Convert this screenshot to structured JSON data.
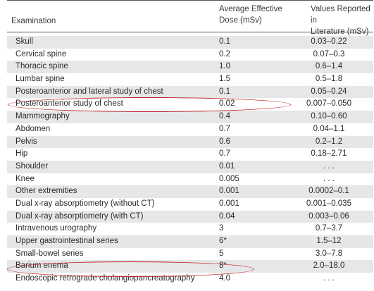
{
  "header": {
    "examination": "Examination",
    "dose": "Average Effective\nDose (mSv)",
    "literature": "Values Reported in\nLiterature (mSv)"
  },
  "rows": [
    {
      "exam": "Skull",
      "dose": "0.1",
      "lit": "0.03–0.22"
    },
    {
      "exam": "Cervical spine",
      "dose": "0.2",
      "lit": "0.07–0.3"
    },
    {
      "exam": "Thoracic spine",
      "dose": "1.0",
      "lit": "0.6–1.4"
    },
    {
      "exam": "Lumbar spine",
      "dose": "1.5",
      "lit": "0.5–1.8"
    },
    {
      "exam": "Posteroanterior and lateral study of chest",
      "dose": "0.1",
      "lit": "0.05–0.24"
    },
    {
      "exam": "Posteroanterior study of chest",
      "dose": "0.02",
      "lit": "0.007–0.050"
    },
    {
      "exam": "Mammography",
      "dose": "0.4",
      "lit": "0.10–0.60"
    },
    {
      "exam": "Abdomen",
      "dose": "0.7",
      "lit": "0.04–1.1"
    },
    {
      "exam": "Pelvis",
      "dose": "0.6",
      "lit": "0.2–1.2"
    },
    {
      "exam": "Hip",
      "dose": "0.7",
      "lit": "0.18–2.71"
    },
    {
      "exam": "Shoulder",
      "dose": "0.01",
      "lit": ". . ."
    },
    {
      "exam": "Knee",
      "dose": "0.005",
      "lit": ". . ."
    },
    {
      "exam": "Other extremities",
      "dose": "0.001",
      "lit": "0.0002–0.1"
    },
    {
      "exam": "Dual x-ray absorptiometry (without CT)",
      "dose": "0.001",
      "lit": "0.001–0.035"
    },
    {
      "exam": "Dual x-ray absorptiometry (with CT)",
      "dose": "0.04",
      "lit": "0.003–0.06"
    },
    {
      "exam": "Intravenous urography",
      "dose": "3",
      "lit": "0.7–3.7"
    },
    {
      "exam": "Upper gastrointestinal series",
      "dose": "6*",
      "lit": "1.5–12"
    },
    {
      "exam": "Small-bowel series",
      "dose": "5",
      "lit": "3.0–7.8"
    },
    {
      "exam": "Barium enema",
      "dose": "8*",
      "lit": "2.0–18.0"
    },
    {
      "exam": "Endoscopic retrograde cholangiopancreatography",
      "dose": "4.0",
      "lit": ". . ."
    }
  ],
  "highlight_color": "#c0282d",
  "stripe_color": "#e6e7e8"
}
